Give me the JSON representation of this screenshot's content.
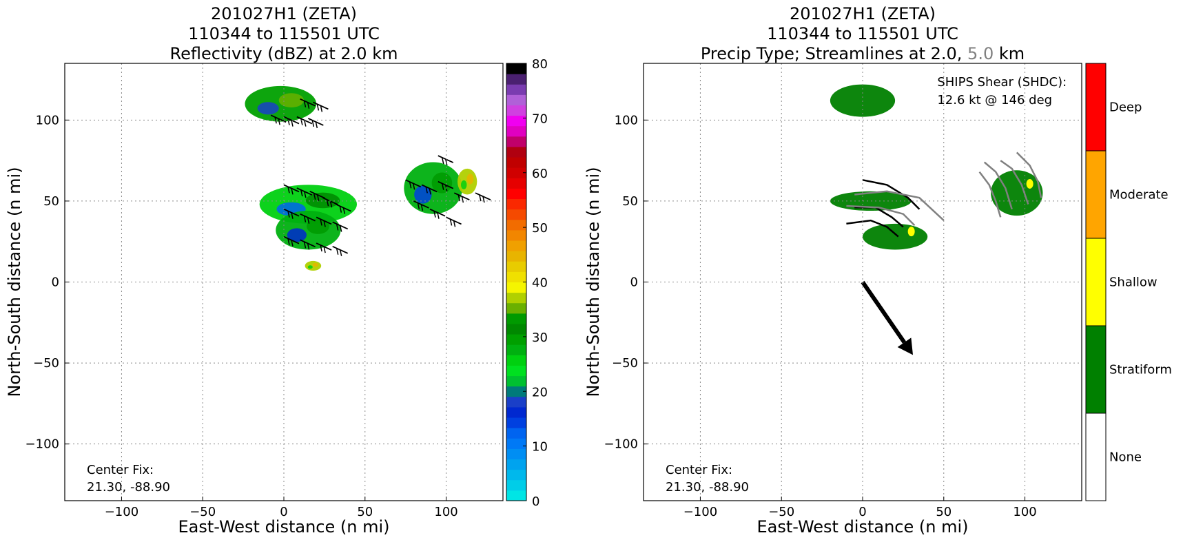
{
  "chart_data": [
    {
      "type": "heatmap",
      "title_lines": [
        "201027H1 (ZETA)",
        "110344 to 115501 UTC",
        "Reflectivity (dBZ) at 2.0 km"
      ],
      "xlabel": "East-West distance (n mi)",
      "ylabel": "North-South distance (n mi)",
      "xlim": [
        -135,
        135
      ],
      "ylim": [
        -135,
        135
      ],
      "xticks": [
        -100,
        -50,
        0,
        50,
        100
      ],
      "yticks": [
        -100,
        -50,
        0,
        50,
        100
      ],
      "xtick_labels": [
        "−100",
        "−50",
        "0",
        "50",
        "100"
      ],
      "ytick_labels": [
        "−100",
        "−50",
        "0",
        "50",
        "100"
      ],
      "grid": true,
      "center_fix": [
        "Center Fix:",
        "21.30, -88.90"
      ],
      "colorbar": {
        "ticks": [
          0,
          10,
          20,
          30,
          40,
          50,
          60,
          70,
          80
        ],
        "tick_labels": [
          "0",
          "10",
          "20",
          "30",
          "40",
          "50",
          "60",
          "70",
          "80"
        ],
        "colors": [
          "#00e5e5",
          "#00cde8",
          "#00b8ec",
          "#00a3ef",
          "#008ef3",
          "#0079f6",
          "#0064f0",
          "#0040e0",
          "#0028d0",
          "#1a3fc8",
          "#007a7a",
          "#00c030",
          "#00e020",
          "#00d010",
          "#00b010",
          "#00a000",
          "#008800",
          "#009a00",
          "#6ab000",
          "#b0d000",
          "#f5f500",
          "#f0e000",
          "#e8cc00",
          "#e8b400",
          "#f0a000",
          "#f28600",
          "#f26c00",
          "#f54a00",
          "#fa2800",
          "#ff0000",
          "#e60000",
          "#d00000",
          "#c00000",
          "#b00010",
          "#c0006a",
          "#e000c0",
          "#f000f0",
          "#d040e0",
          "#b060d8",
          "#7a3cb0",
          "#4a2070",
          "#000000"
        ]
      },
      "precip_regions": [
        {
          "name": "north",
          "cx": -2,
          "cy": 110,
          "rx": 22,
          "ry": 11,
          "value": 30
        },
        {
          "name": "central",
          "cx": 15,
          "cy": 48,
          "rx": 30,
          "ry": 12,
          "value": 25
        },
        {
          "name": "south-central",
          "cx": 15,
          "cy": 32,
          "rx": 20,
          "ry": 12,
          "value": 28
        },
        {
          "name": "east",
          "cx": 92,
          "cy": 58,
          "rx": 18,
          "ry": 16,
          "value": 27
        },
        {
          "name": "east-yellow",
          "cx": 113,
          "cy": 62,
          "rx": 6,
          "ry": 8,
          "value": 38
        },
        {
          "name": "southern-cell",
          "cx": 18,
          "cy": 10,
          "rx": 5,
          "ry": 3,
          "value": 38
        }
      ]
    },
    {
      "type": "heatmap",
      "title_lines": [
        "201027H1 (ZETA)",
        "110344 to 115501 UTC"
      ],
      "title_third": {
        "prefix": "Precip Type; Streamlines at 2.0, ",
        "highlight": "5.0",
        "suffix": " km"
      },
      "title_highlight_color": "#808080",
      "xlabel": "East-West distance (n mi)",
      "ylabel": "North-South distance (n mi)",
      "xlim": [
        -135,
        135
      ],
      "ylim": [
        -135,
        135
      ],
      "xticks": [
        -100,
        -50,
        0,
        50,
        100
      ],
      "yticks": [
        -100,
        -50,
        0,
        50,
        100
      ],
      "xtick_labels": [
        "−100",
        "−50",
        "0",
        "50",
        "100"
      ],
      "ytick_labels": [
        "−100",
        "−50",
        "0",
        "50",
        "100"
      ],
      "grid": true,
      "center_fix": [
        "Center Fix:",
        "21.30, -88.90"
      ],
      "ships_shear": {
        "label": "SHIPS Shear (SHDC):",
        "value": "12.6 kt @ 146 deg",
        "speed_kt": 12.6,
        "direction_deg": 146
      },
      "shear_arrow": {
        "from": [
          0,
          0
        ],
        "to": [
          31,
          -45
        ]
      },
      "colorbar": {
        "categories": [
          "None",
          "Stratiform",
          "Shallow",
          "Moderate",
          "Deep"
        ],
        "colors": [
          "#ffffff",
          "#008000",
          "#ffff00",
          "#ffa500",
          "#ff0000"
        ]
      },
      "precip_regions": [
        {
          "name": "north",
          "cx": 0,
          "cy": 112,
          "rx": 20,
          "ry": 10,
          "category": "Stratiform"
        },
        {
          "name": "central",
          "cx": 5,
          "cy": 50,
          "rx": 25,
          "ry": 6,
          "category": "Stratiform"
        },
        {
          "name": "south-central",
          "cx": 20,
          "cy": 28,
          "rx": 20,
          "ry": 8,
          "category": "Stratiform"
        },
        {
          "name": "east",
          "cx": 95,
          "cy": 55,
          "rx": 16,
          "ry": 14,
          "category": "Stratiform"
        }
      ]
    }
  ]
}
